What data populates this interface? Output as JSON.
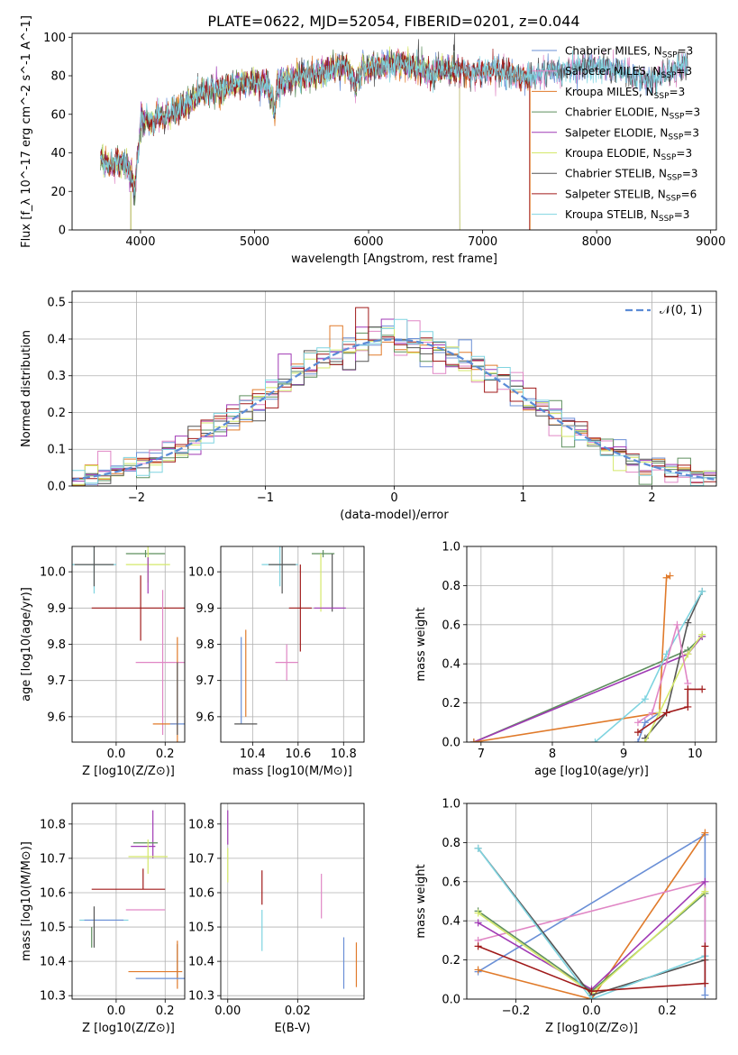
{
  "figure_title": "PLATE=0622, MJD=52054, FIBERID=0201, z=0.044",
  "chart_data": [
    {
      "id": "spectrum",
      "type": "line",
      "title": "PLATE=0622, MJD=52054, FIBERID=0201, z=0.044",
      "xlabel": "wavelength [Angstrom, rest frame]",
      "ylabel": "Flux [f_λ 10^-17 erg cm^-2 s^-1 A^-1]",
      "xlim": [
        3400,
        9050
      ],
      "ylim": [
        0,
        102
      ],
      "xticks": [
        4000,
        5000,
        6000,
        7000,
        8000,
        9000
      ],
      "yticks": [
        0,
        20,
        40,
        60,
        80,
        100
      ],
      "grid": false,
      "legend_position": "right",
      "anchors": {
        "x": [
          3650,
          3700,
          3750,
          3800,
          3850,
          3900,
          3950,
          4000,
          4050,
          4100,
          4150,
          4200,
          4300,
          4400,
          4500,
          4600,
          4700,
          4800,
          4900,
          5000,
          5100,
          5150,
          5175,
          5200,
          5300,
          5400,
          5500,
          5600,
          5700,
          5800,
          5890,
          5950,
          6000,
          6100,
          6200,
          6300,
          6400,
          6500,
          6560,
          6600,
          6700,
          6800,
          6900,
          7000,
          7100,
          7200,
          7300,
          7400,
          7500,
          7600,
          7700,
          7800,
          7900,
          8000,
          8100,
          8200,
          8300,
          8400,
          8500,
          8600,
          8700,
          8800
        ],
        "y": [
          38,
          34,
          33,
          36,
          35,
          32,
          20,
          55,
          58,
          55,
          60,
          58,
          62,
          64,
          70,
          72,
          73,
          75,
          76,
          77,
          76,
          70,
          62,
          75,
          78,
          80,
          80,
          82,
          84,
          85,
          75,
          85,
          84,
          85,
          86,
          86,
          85,
          83,
          80,
          84,
          83,
          83,
          82,
          82,
          83,
          82,
          80,
          79,
          81,
          83,
          82,
          84,
          85,
          84,
          84,
          83,
          80,
          78,
          78,
          80,
          84,
          86
        ]
      },
      "series": [
        {
          "name": "Chabrier MILES",
          "nssp": "3",
          "color": "#6a8fd6",
          "end": 8800,
          "spike": null
        },
        {
          "name": "Salpeter MILES",
          "nssp": "3",
          "color": "#e086c5",
          "end": 8800,
          "spike": null
        },
        {
          "name": "Kroupa MILES",
          "nssp": "3",
          "color": "#e07a2a",
          "end": 7420,
          "spike": null
        },
        {
          "name": "Chabrier ELODIE",
          "nssp": "3",
          "color": "#5e8f5e",
          "end": 6800,
          "spike": null
        },
        {
          "name": "Salpeter ELODIE",
          "nssp": "3",
          "color": "#a03ab5",
          "end": 6800,
          "spike": null
        },
        {
          "name": "Kroupa ELODIE",
          "nssp": "3",
          "color": "#d4e86a",
          "end": 6800,
          "spike": null
        },
        {
          "name": "Chabrier STELIB",
          "nssp": "3",
          "color": "#555555",
          "end": 8800,
          "spike": 6750
        },
        {
          "name": "Salpeter STELIB",
          "nssp": "6",
          "color": "#a01a1a",
          "end": 7410,
          "spike": null
        },
        {
          "name": "Kroupa STELIB",
          "nssp": "3",
          "color": "#7fd4e0",
          "end": 8800,
          "spike": null
        }
      ]
    },
    {
      "id": "residuals",
      "type": "histogram",
      "xlabel": "(data-model)/error",
      "ylabel": "Normed distribution",
      "xlim": [
        -2.5,
        2.5
      ],
      "ylim": [
        0,
        0.53
      ],
      "xticks": [
        -2,
        -1,
        0,
        1,
        2
      ],
      "yticks": [
        0.0,
        0.1,
        0.2,
        0.3,
        0.4,
        0.5
      ],
      "grid": true,
      "legend_position": "top-right",
      "gaussian_label": "𝒩(0, 1)",
      "gaussian_color": "#5b8bd6",
      "bin_width": 0.1
    },
    {
      "id": "age-vs-Z",
      "type": "scatter",
      "xlabel": "Z [log10(Z/Z⊙)]",
      "ylabel": "age [log10(age/yr)]",
      "xlim": [
        -0.18,
        0.28
      ],
      "ylim": [
        9.53,
        10.07
      ],
      "xticks": [
        0.0,
        0.2
      ],
      "yticks": [
        9.6,
        9.7,
        9.8,
        9.9,
        10.0
      ],
      "grid": true,
      "points": [
        {
          "color": "#7fd4e0",
          "x": -0.09,
          "y": 10.02,
          "xerr": 0.09,
          "yerr": 0.08
        },
        {
          "color": "#555555",
          "x": -0.09,
          "y": 10.02,
          "xerr": 0.08,
          "yerr": 0.06
        },
        {
          "color": "#5e8f5e",
          "x": 0.12,
          "y": 10.05,
          "xerr": 0.08,
          "yerr": 0.01
        },
        {
          "color": "#d4e86a",
          "x": 0.13,
          "y": 10.02,
          "xerr": 0.09,
          "yerr": 0.05
        },
        {
          "color": "#a03ab5",
          "x": 0.13,
          "y": 9.99,
          "xerr": 0.0,
          "yerr": 0.05
        },
        {
          "color": "#a01a1a",
          "x": 0.1,
          "y": 9.9,
          "xerr": 0.2,
          "yerr": 0.09
        },
        {
          "color": "#e086c5",
          "x": 0.19,
          "y": 9.75,
          "xerr": 0.11,
          "yerr": 0.2
        },
        {
          "color": "#e07a2a",
          "x": 0.25,
          "y": 9.58,
          "xerr": 0.0,
          "yerr": 0.24
        },
        {
          "color": "#e07a2a",
          "x": 0.2,
          "y": 9.58,
          "xerr": 0.05,
          "yerr": 0.0
        },
        {
          "color": "#6a8fd6",
          "x": 0.25,
          "y": 9.58,
          "xerr": 0.03,
          "yerr": 0.0
        },
        {
          "color": "#555555",
          "x": 0.25,
          "y": 9.65,
          "xerr": 0.0,
          "yerr": 0.1
        }
      ]
    },
    {
      "id": "age-vs-mass",
      "type": "scatter",
      "xlabel": "mass [log10(M/M⊙)]",
      "ylabel": "",
      "xlim": [
        10.26,
        10.89
      ],
      "ylim": [
        9.53,
        10.07
      ],
      "xticks": [
        10.4,
        10.6,
        10.8
      ],
      "yticks": [
        9.6,
        9.7,
        9.8,
        9.9,
        10.0
      ],
      "grid": true,
      "points": [
        {
          "color": "#6a8fd6",
          "x": 10.35,
          "y": 9.7,
          "xerr": 0.0,
          "yerr": 0.12
        },
        {
          "color": "#e07a2a",
          "x": 10.37,
          "y": 9.72,
          "xerr": 0.0,
          "yerr": 0.12
        },
        {
          "color": "#555555",
          "x": 10.37,
          "y": 9.58,
          "xerr": 0.05,
          "yerr": 0.0
        },
        {
          "color": "#7fd4e0",
          "x": 10.52,
          "y": 10.02,
          "xerr": 0.08,
          "yerr": 0.06
        },
        {
          "color": "#555555",
          "x": 10.53,
          "y": 10.02,
          "xerr": 0.06,
          "yerr": 0.08
        },
        {
          "color": "#e086c5",
          "x": 10.55,
          "y": 9.75,
          "xerr": 0.05,
          "yerr": 0.05
        },
        {
          "color": "#a01a1a",
          "x": 10.61,
          "y": 9.9,
          "xerr": 0.05,
          "yerr": 0.12
        },
        {
          "color": "#5e8f5e",
          "x": 10.71,
          "y": 10.05,
          "xerr": 0.05,
          "yerr": 0.01
        },
        {
          "color": "#d4e86a",
          "x": 10.7,
          "y": 9.97,
          "xerr": 0.0,
          "yerr": 0.08
        },
        {
          "color": "#555555",
          "x": 10.75,
          "y": 9.97,
          "xerr": 0.0,
          "yerr": 0.08
        },
        {
          "color": "#a03ab5",
          "x": 10.74,
          "y": 9.9,
          "xerr": 0.07,
          "yerr": 0.0
        }
      ]
    },
    {
      "id": "massweight-vs-age",
      "type": "line",
      "xlabel": "age [log10(age/yr)]",
      "ylabel": "mass weight",
      "xlim": [
        6.8,
        10.3
      ],
      "ylim": [
        0,
        1.0
      ],
      "xticks": [
        7,
        8,
        9,
        10
      ],
      "yticks": [
        0.0,
        0.2,
        0.4,
        0.6,
        0.8,
        1.0
      ],
      "grid": true,
      "series": [
        {
          "color": "#5e8f5e",
          "x": [
            6.9,
            9.9,
            10.1
          ],
          "y": [
            0.0,
            0.47,
            0.54
          ]
        },
        {
          "color": "#a03ab5",
          "x": [
            6.9,
            9.9,
            10.1
          ],
          "y": [
            0.0,
            0.45,
            0.54
          ]
        },
        {
          "color": "#e07a2a",
          "x": [
            6.9,
            9.5,
            9.6,
            9.65
          ],
          "y": [
            0.0,
            0.15,
            0.84,
            0.85
          ]
        },
        {
          "color": "#555555",
          "x": [
            9.3,
            9.6,
            9.9,
            10.1
          ],
          "y": [
            0.02,
            0.15,
            0.61,
            0.77
          ]
        },
        {
          "color": "#7fd4e0",
          "x": [
            8.6,
            9.3,
            9.6,
            10.1
          ],
          "y": [
            0.0,
            0.22,
            0.45,
            0.77
          ]
        },
        {
          "color": "#6a8fd6",
          "x": [
            9.2,
            9.3,
            9.5
          ],
          "y": [
            0.0,
            0.1,
            0.15
          ]
        },
        {
          "color": "#d4e86a",
          "x": [
            9.3,
            9.5,
            9.9,
            10.1
          ],
          "y": [
            0.0,
            0.15,
            0.45,
            0.55
          ]
        },
        {
          "color": "#e086c5",
          "x": [
            9.2,
            9.4,
            9.75,
            9.9
          ],
          "y": [
            0.1,
            0.15,
            0.6,
            0.3
          ]
        },
        {
          "color": "#a01a1a",
          "x": [
            9.2,
            9.6,
            9.9,
            9.9,
            10.1
          ],
          "y": [
            0.05,
            0.15,
            0.18,
            0.27,
            0.27
          ]
        }
      ]
    },
    {
      "id": "mass-vs-Z",
      "type": "scatter",
      "xlabel": "Z [log10(Z/Z⊙)]",
      "ylabel": "mass [log10(M/M⊙)]",
      "xlim": [
        -0.18,
        0.28
      ],
      "ylim": [
        10.29,
        10.86
      ],
      "xticks": [
        0.0,
        0.2
      ],
      "yticks": [
        10.3,
        10.4,
        10.5,
        10.6,
        10.7,
        10.8
      ],
      "grid": true,
      "points": [
        {
          "color": "#a03ab5",
          "x": 0.15,
          "y": 10.77,
          "xerr": 0.0,
          "yerr": 0.07
        },
        {
          "color": "#a03ab5",
          "x": 0.11,
          "y": 10.735,
          "xerr": 0.05,
          "yerr": 0.0
        },
        {
          "color": "#5e8f5e",
          "x": 0.12,
          "y": 10.745,
          "xerr": 0.05,
          "yerr": 0.0
        },
        {
          "color": "#d4e86a",
          "x": 0.13,
          "y": 10.705,
          "xerr": 0.08,
          "yerr": 0.05
        },
        {
          "color": "#a01a1a",
          "x": 0.11,
          "y": 10.64,
          "xerr": 0.0,
          "yerr": 0.03
        },
        {
          "color": "#a01a1a",
          "x": 0.05,
          "y": 10.61,
          "xerr": 0.15,
          "yerr": 0.0
        },
        {
          "color": "#e086c5",
          "x": 0.12,
          "y": 10.55,
          "xerr": 0.08,
          "yerr": 0.0
        },
        {
          "color": "#7fd4e0",
          "x": -0.05,
          "y": 10.52,
          "xerr": 0.1,
          "yerr": 0.0
        },
        {
          "color": "#6a8fd6",
          "x": -0.05,
          "y": 10.52,
          "xerr": 0.08,
          "yerr": 0.0
        },
        {
          "color": "#555555",
          "x": -0.09,
          "y": 10.5,
          "xerr": 0.0,
          "yerr": 0.06
        },
        {
          "color": "#5e8f5e",
          "x": -0.1,
          "y": 10.47,
          "xerr": 0.0,
          "yerr": 0.03
        },
        {
          "color": "#555555",
          "x": 0.25,
          "y": 10.4,
          "xerr": 0.0,
          "yerr": 0.05
        },
        {
          "color": "#e07a2a",
          "x": 0.25,
          "y": 10.39,
          "xerr": 0.0,
          "yerr": 0.07
        },
        {
          "color": "#e07a2a",
          "x": 0.16,
          "y": 10.37,
          "xerr": 0.11,
          "yerr": 0.0
        },
        {
          "color": "#6a8fd6",
          "x": 0.18,
          "y": 10.35,
          "xerr": 0.1,
          "yerr": 0.0
        }
      ]
    },
    {
      "id": "mass-vs-ebv",
      "type": "scatter",
      "xlabel": "E(B-V)",
      "ylabel": "",
      "xlim": [
        -0.002,
        0.039
      ],
      "ylim": [
        10.29,
        10.86
      ],
      "xticks": [
        0.0,
        0.02
      ],
      "yticks": [
        10.3,
        10.4,
        10.5,
        10.6,
        10.7,
        10.8
      ],
      "grid": true,
      "points": [
        {
          "color": "#a03ab5",
          "x": 0.0,
          "y": 10.79,
          "xerr": 0.0,
          "yerr": 0.05
        },
        {
          "color": "#d4e86a",
          "x": 0.0,
          "y": 10.68,
          "xerr": 0.0,
          "yerr": 0.05
        },
        {
          "color": "#a01a1a",
          "x": 0.0098,
          "y": 10.615,
          "xerr": 0.0,
          "yerr": 0.05
        },
        {
          "color": "#7fd4e0",
          "x": 0.0098,
          "y": 10.49,
          "xerr": 0.0,
          "yerr": 0.06
        },
        {
          "color": "#e086c5",
          "x": 0.0268,
          "y": 10.59,
          "xerr": 0.0,
          "yerr": 0.065
        },
        {
          "color": "#6a8fd6",
          "x": 0.0332,
          "y": 10.395,
          "xerr": 0.0,
          "yerr": 0.075
        },
        {
          "color": "#e07a2a",
          "x": 0.0368,
          "y": 10.39,
          "xerr": 0.0,
          "yerr": 0.065
        }
      ]
    },
    {
      "id": "massweight-vs-Z",
      "type": "line",
      "xlabel": "Z [log10(Z/Z⊙)]",
      "ylabel": "mass weight",
      "xlim": [
        -0.33,
        0.33
      ],
      "ylim": [
        0,
        1.0
      ],
      "xticks": [
        -0.2,
        0.0,
        0.2
      ],
      "yticks": [
        0.0,
        0.2,
        0.4,
        0.6,
        0.8,
        1.0
      ],
      "grid": true,
      "series": [
        {
          "color": "#6a8fd6",
          "x": [
            -0.3,
            0.3,
            0.3
          ],
          "y": [
            0.14,
            0.84,
            0.02
          ]
        },
        {
          "color": "#e07a2a",
          "x": [
            -0.3,
            0.0,
            0.3
          ],
          "y": [
            0.15,
            0.0,
            0.85
          ]
        },
        {
          "color": "#e086c5",
          "x": [
            -0.3,
            0.3,
            0.3
          ],
          "y": [
            0.3,
            0.6,
            0.22
          ]
        },
        {
          "color": "#a03ab5",
          "x": [
            -0.3,
            0.0,
            0.3
          ],
          "y": [
            0.39,
            0.05,
            0.6
          ]
        },
        {
          "color": "#5e8f5e",
          "x": [
            -0.3,
            0.0,
            0.3
          ],
          "y": [
            0.45,
            0.04,
            0.54
          ]
        },
        {
          "color": "#d4e86a",
          "x": [
            -0.3,
            0.0,
            0.3
          ],
          "y": [
            0.44,
            0.03,
            0.55
          ]
        },
        {
          "color": "#555555",
          "x": [
            -0.3,
            0.0,
            0.3
          ],
          "y": [
            0.77,
            0.02,
            0.2
          ]
        },
        {
          "color": "#7fd4e0",
          "x": [
            -0.3,
            0.0,
            0.3
          ],
          "y": [
            0.77,
            0.0,
            0.22
          ]
        },
        {
          "color": "#a01a1a",
          "x": [
            -0.3,
            0.0,
            0.3,
            0.3
          ],
          "y": [
            0.27,
            0.04,
            0.08,
            0.27
          ]
        }
      ]
    }
  ]
}
